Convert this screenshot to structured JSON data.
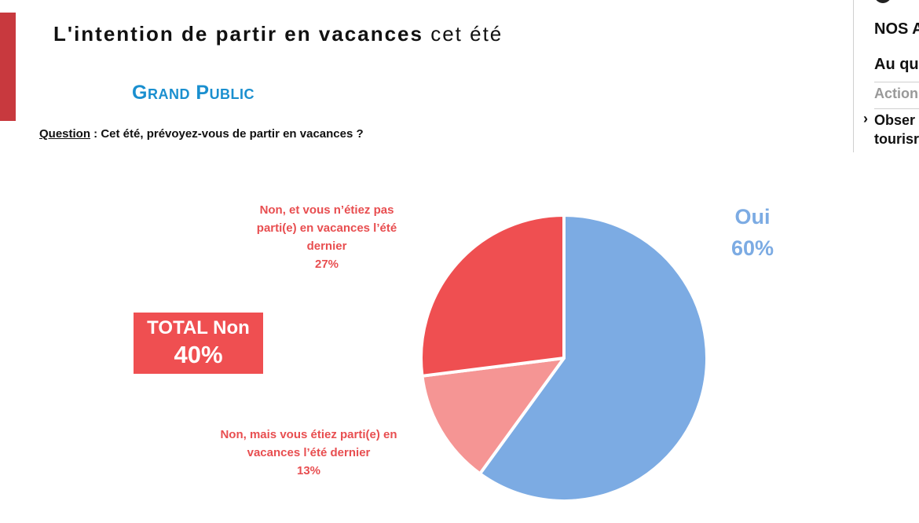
{
  "header": {
    "title_bold": "L'intention de partir en vacances",
    "title_light": "cet été",
    "subtitle": "Grand Public",
    "question_label": "Question",
    "question_text": " : Cet été, prévoyez-vous de partir en vacances ?"
  },
  "side_panel": {
    "item1": "NOS A",
    "item2": "Au qu",
    "item3": "Action",
    "item4_line1": "Obser",
    "item4_line2": "tourisr"
  },
  "colors": {
    "oui": "#7cabe3",
    "non_27": "#ef4f51",
    "non_13": "#f59594",
    "accent": "#c8393e",
    "subtitle": "#1a8fcf"
  },
  "total_box": {
    "label": "TOTAL Non",
    "value": "40%"
  },
  "chart_data": {
    "type": "pie",
    "slices": [
      {
        "label": "Oui",
        "value": 60,
        "display": "60%",
        "color": "#7cabe3"
      },
      {
        "label_lines": [
          "Non, mais vous étiez parti(e) en",
          "vacances l’été dernier"
        ],
        "value": 13,
        "display": "13%",
        "color": "#f59594"
      },
      {
        "label_lines": [
          "Non, et vous n’étiez pas",
          "parti(e) en vacances l’été",
          "dernier"
        ],
        "value": 27,
        "display": "27%",
        "color": "#ef4f51"
      }
    ]
  }
}
